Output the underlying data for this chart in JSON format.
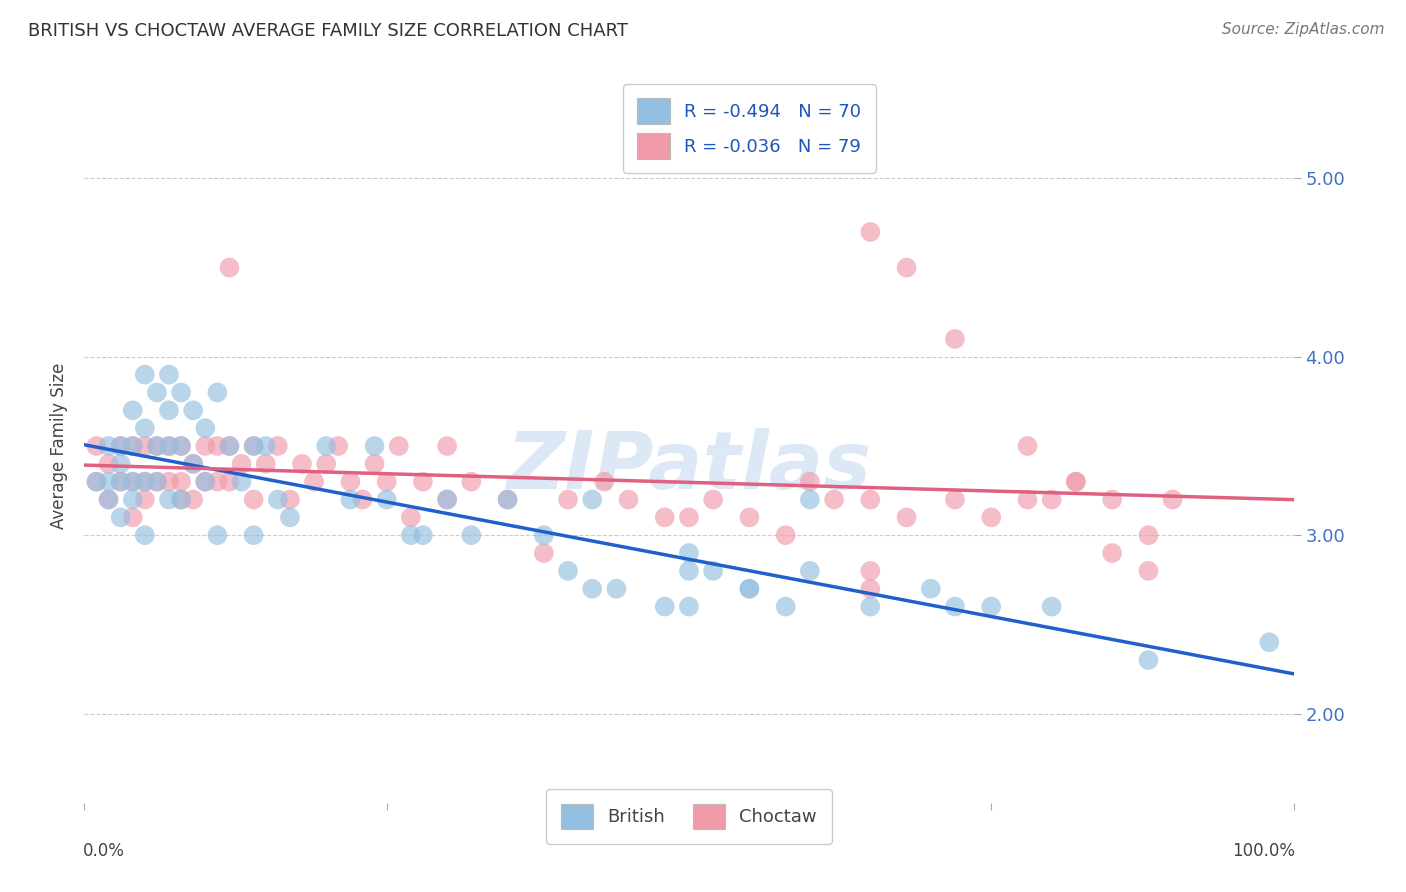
{
  "title": "BRITISH VS CHOCTAW AVERAGE FAMILY SIZE CORRELATION CHART",
  "source_text": "Source: ZipAtlas.com",
  "ylabel": "Average Family Size",
  "ytick_labels_right": [
    "2.00",
    "3.00",
    "4.00",
    "5.00"
  ],
  "legend_entries": [
    {
      "label": "R = -0.494   N = 70",
      "color": "#aec6e8"
    },
    {
      "label": "R = -0.036   N = 79",
      "color": "#f4b8c4"
    }
  ],
  "legend_bottom": [
    "British",
    "Choctaw"
  ],
  "british_color": "#94bfe0",
  "choctaw_color": "#f09aaa",
  "british_line_color": "#2060cc",
  "choctaw_line_color": "#e06080",
  "background_color": "#ffffff",
  "grid_color": "#cccccc",
  "watermark_text": "ZIPatlas",
  "watermark_color": "#dce8f5",
  "title_color": "#333333",
  "source_color": "#777777",
  "right_tick_color": "#4472c4",
  "xlim": [
    0.0,
    1.0
  ],
  "ylim": [
    1.5,
    5.5
  ],
  "yticks": [
    2.0,
    3.0,
    4.0,
    5.0
  ],
  "british_x": [
    0.01,
    0.02,
    0.02,
    0.02,
    0.03,
    0.03,
    0.03,
    0.03,
    0.04,
    0.04,
    0.04,
    0.04,
    0.05,
    0.05,
    0.05,
    0.05,
    0.06,
    0.06,
    0.06,
    0.07,
    0.07,
    0.07,
    0.07,
    0.08,
    0.08,
    0.08,
    0.09,
    0.09,
    0.1,
    0.1,
    0.11,
    0.11,
    0.12,
    0.13,
    0.14,
    0.14,
    0.15,
    0.16,
    0.17,
    0.2,
    0.22,
    0.24,
    0.25,
    0.27,
    0.28,
    0.3,
    0.32,
    0.35,
    0.38,
    0.4,
    0.42,
    0.44,
    0.5,
    0.52,
    0.55,
    0.58,
    0.6,
    0.65,
    0.7,
    0.42,
    0.5,
    0.55,
    0.6,
    0.75,
    0.8,
    0.48,
    0.5,
    0.72,
    0.88,
    0.98
  ],
  "british_y": [
    3.3,
    3.5,
    3.2,
    3.3,
    3.5,
    3.3,
    3.1,
    3.4,
    3.7,
    3.5,
    3.2,
    3.3,
    3.9,
    3.6,
    3.3,
    3.0,
    3.8,
    3.5,
    3.3,
    3.9,
    3.7,
    3.5,
    3.2,
    3.8,
    3.5,
    3.2,
    3.7,
    3.4,
    3.6,
    3.3,
    3.8,
    3.0,
    3.5,
    3.3,
    3.5,
    3.0,
    3.5,
    3.2,
    3.1,
    3.5,
    3.2,
    3.5,
    3.2,
    3.0,
    3.0,
    3.2,
    3.0,
    3.2,
    3.0,
    2.8,
    2.7,
    2.7,
    2.8,
    2.8,
    2.7,
    2.6,
    2.8,
    2.6,
    2.7,
    3.2,
    2.9,
    2.7,
    3.2,
    2.6,
    2.6,
    2.6,
    2.6,
    2.6,
    2.3,
    2.4
  ],
  "choctaw_x": [
    0.01,
    0.01,
    0.02,
    0.02,
    0.03,
    0.03,
    0.04,
    0.04,
    0.04,
    0.05,
    0.05,
    0.05,
    0.06,
    0.06,
    0.07,
    0.07,
    0.08,
    0.08,
    0.08,
    0.09,
    0.09,
    0.1,
    0.1,
    0.11,
    0.11,
    0.12,
    0.12,
    0.13,
    0.14,
    0.14,
    0.15,
    0.16,
    0.17,
    0.18,
    0.19,
    0.2,
    0.21,
    0.22,
    0.23,
    0.24,
    0.25,
    0.26,
    0.27,
    0.28,
    0.3,
    0.32,
    0.35,
    0.38,
    0.4,
    0.43,
    0.45,
    0.48,
    0.5,
    0.52,
    0.55,
    0.58,
    0.6,
    0.62,
    0.65,
    0.68,
    0.72,
    0.75,
    0.78,
    0.8,
    0.82,
    0.85,
    0.88,
    0.9,
    0.12,
    0.3,
    0.68,
    0.72,
    0.78,
    0.82,
    0.85,
    0.88,
    0.65,
    0.65,
    0.65
  ],
  "choctaw_y": [
    3.3,
    3.5,
    3.4,
    3.2,
    3.5,
    3.3,
    3.5,
    3.3,
    3.1,
    3.5,
    3.3,
    3.2,
    3.5,
    3.3,
    3.5,
    3.3,
    3.5,
    3.3,
    3.2,
    3.4,
    3.2,
    3.5,
    3.3,
    3.5,
    3.3,
    3.5,
    3.3,
    3.4,
    3.5,
    3.2,
    3.4,
    3.5,
    3.2,
    3.4,
    3.3,
    3.4,
    3.5,
    3.3,
    3.2,
    3.4,
    3.3,
    3.5,
    3.1,
    3.3,
    3.2,
    3.3,
    3.2,
    2.9,
    3.2,
    3.3,
    3.2,
    3.1,
    3.1,
    3.2,
    3.1,
    3.0,
    3.3,
    3.2,
    3.2,
    3.1,
    3.2,
    3.1,
    3.2,
    3.2,
    3.3,
    3.2,
    3.0,
    3.2,
    4.5,
    3.5,
    4.5,
    4.1,
    3.5,
    3.3,
    2.9,
    2.8,
    2.8,
    2.7,
    4.7
  ]
}
